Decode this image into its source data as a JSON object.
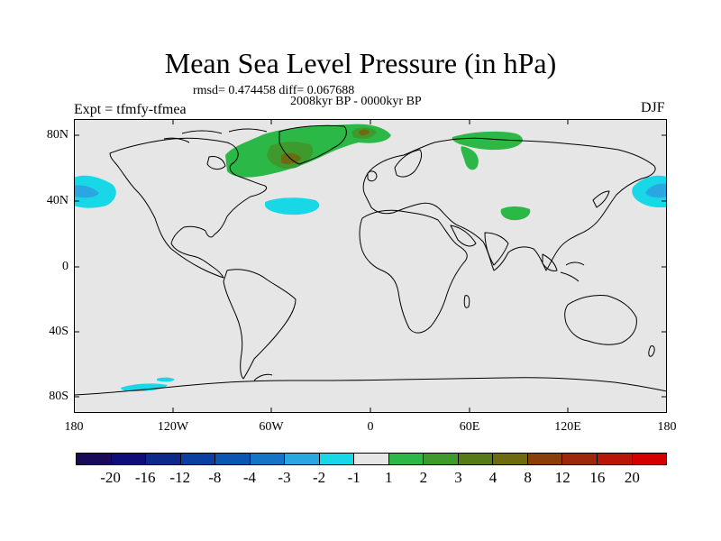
{
  "title": "Mean Sea Level Pressure (in hPa)",
  "stats": "rmsd= 0.474458 diff= 0.067688",
  "period": "2008kyr BP - 0000kyr BP",
  "experiment": "Expt = tfmfy-tfmea",
  "season": "DJF",
  "y_axis_labels": [
    "80N",
    "40N",
    "0",
    "40S",
    "80S"
  ],
  "x_axis_labels": [
    "180",
    "120W",
    "60W",
    "0",
    "60E",
    "120E",
    "180"
  ],
  "colorbar": {
    "labels": [
      "-20",
      "-16",
      "-12",
      "-8",
      "-4",
      "-3",
      "-2",
      "-1",
      "1",
      "2",
      "3",
      "4",
      "8",
      "12",
      "16",
      "20"
    ],
    "colors": [
      "#1a0a5a",
      "#0d0e78",
      "#0b2a8a",
      "#0b3fa0",
      "#0b55b4",
      "#1374c8",
      "#2aa6e0",
      "#18d8e8",
      "#e6e6e6",
      "#2bb846",
      "#3e9a2c",
      "#557a16",
      "#6e6a10",
      "#8a3e0a",
      "#a0280a",
      "#b81606",
      "#d40000"
    ]
  },
  "colors": {
    "ocean": "#e6e6e6",
    "negative_anomaly": "#18d8e8",
    "positive_light": "#2bb846",
    "positive_mid": "#3e9a2c",
    "positive_dark": "#6e6a10"
  }
}
